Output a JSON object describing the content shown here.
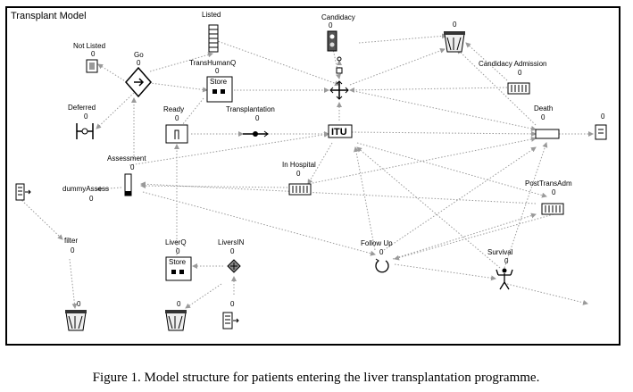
{
  "diagram": {
    "title": "Transplant Model",
    "caption": "Figure 1. Model structure for patients entering the liver transplantation programme.",
    "nodes": {
      "listed": {
        "label": "Listed",
        "value": ""
      },
      "candidacy": {
        "label": "Candidacy",
        "value": "0"
      },
      "not_listed": {
        "label": "Not Listed",
        "value": "0"
      },
      "go": {
        "label": "Go",
        "value": "0"
      },
      "trans_human_q": {
        "label": "TransHumanQ",
        "value": "0",
        "store": "Store"
      },
      "candidacy_admission": {
        "label": "Candidacy Admission",
        "value": "0"
      },
      "deferred": {
        "label": "Deferred",
        "value": "0"
      },
      "ready": {
        "label": "Ready",
        "value": "0"
      },
      "transplantation": {
        "label": "Transplantation",
        "value": "0"
      },
      "itu": {
        "label": "ITU",
        "value": ""
      },
      "death": {
        "label": "Death",
        "value": "0"
      },
      "death_exit": {
        "value": "0"
      },
      "assessment": {
        "label": "Assessment",
        "value": "0"
      },
      "dummy_assess": {
        "label": "dummyAssess",
        "value": "0"
      },
      "in_hospital": {
        "label": "In Hospital",
        "value": "0"
      },
      "post_trans_adm": {
        "label": "PostTransAdm",
        "value": "0"
      },
      "filter": {
        "label": "filter",
        "value": "0"
      },
      "follow_up": {
        "label": "Follow Up",
        "value": "0"
      },
      "survival": {
        "label": "Survival",
        "value": "0"
      },
      "liver_q": {
        "label": "LiverQ",
        "value": "0",
        "store": "Store"
      },
      "livers_in": {
        "label": "LiversIN",
        "value": "0"
      },
      "bin_top": {
        "value": "0"
      },
      "bin_left": {
        "value": "0"
      },
      "bin_mid": {
        "value": "0"
      },
      "source_livers": {
        "value": "0"
      }
    }
  }
}
